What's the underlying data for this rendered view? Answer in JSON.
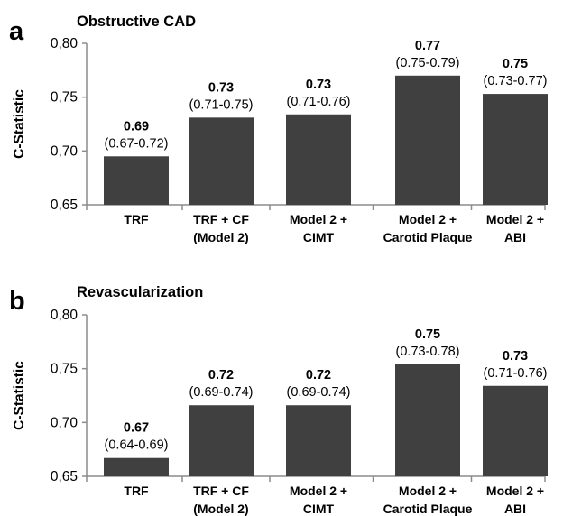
{
  "chart_data": [
    {
      "type": "bar",
      "panel_label": "a",
      "title": "Obstructive CAD",
      "ylabel": "C-Statistic",
      "ylim": [
        0.65,
        0.8
      ],
      "yticks": [
        "0,65",
        "0,70",
        "0,75",
        "0,80"
      ],
      "categories": [
        [
          "TRF"
        ],
        [
          "TRF + CF",
          "(Model 2)"
        ],
        [
          "Model 2 +",
          "CIMT"
        ],
        [
          "Model 2 +",
          "Carotid Plaque"
        ],
        [
          "Model 2 +",
          "ABI"
        ]
      ],
      "values": [
        0.695,
        0.731,
        0.734,
        0.77,
        0.753
      ],
      "value_labels": [
        "0.69",
        "0.73",
        "0.73",
        "0.77",
        "0.75"
      ],
      "ci_labels": [
        "(0.67-0.72)",
        "(0.71-0.75)",
        "(0.71-0.76)",
        "(0.75-0.79)",
        "(0.73-0.77)"
      ],
      "bar_color": "#404040",
      "grid": false
    },
    {
      "type": "bar",
      "panel_label": "b",
      "title": "Revascularization",
      "ylabel": "C-Statistic",
      "ylim": [
        0.65,
        0.8
      ],
      "yticks": [
        "0,65",
        "0,70",
        "0,75",
        "0,80"
      ],
      "categories": [
        [
          "TRF"
        ],
        [
          "TRF + CF",
          "(Model 2)"
        ],
        [
          "Model 2 +",
          "CIMT"
        ],
        [
          "Model 2 +",
          "Carotid Plaque"
        ],
        [
          "Model 2 +",
          "ABI"
        ]
      ],
      "values": [
        0.667,
        0.716,
        0.716,
        0.754,
        0.734
      ],
      "value_labels": [
        "0.67",
        "0.72",
        "0.72",
        "0.75",
        "0.73"
      ],
      "ci_labels": [
        "(0.64-0.69)",
        "(0.69-0.74)",
        "(0.69-0.74)",
        "(0.73-0.78)",
        "(0.71-0.76)"
      ],
      "bar_color": "#404040",
      "grid": false
    }
  ]
}
